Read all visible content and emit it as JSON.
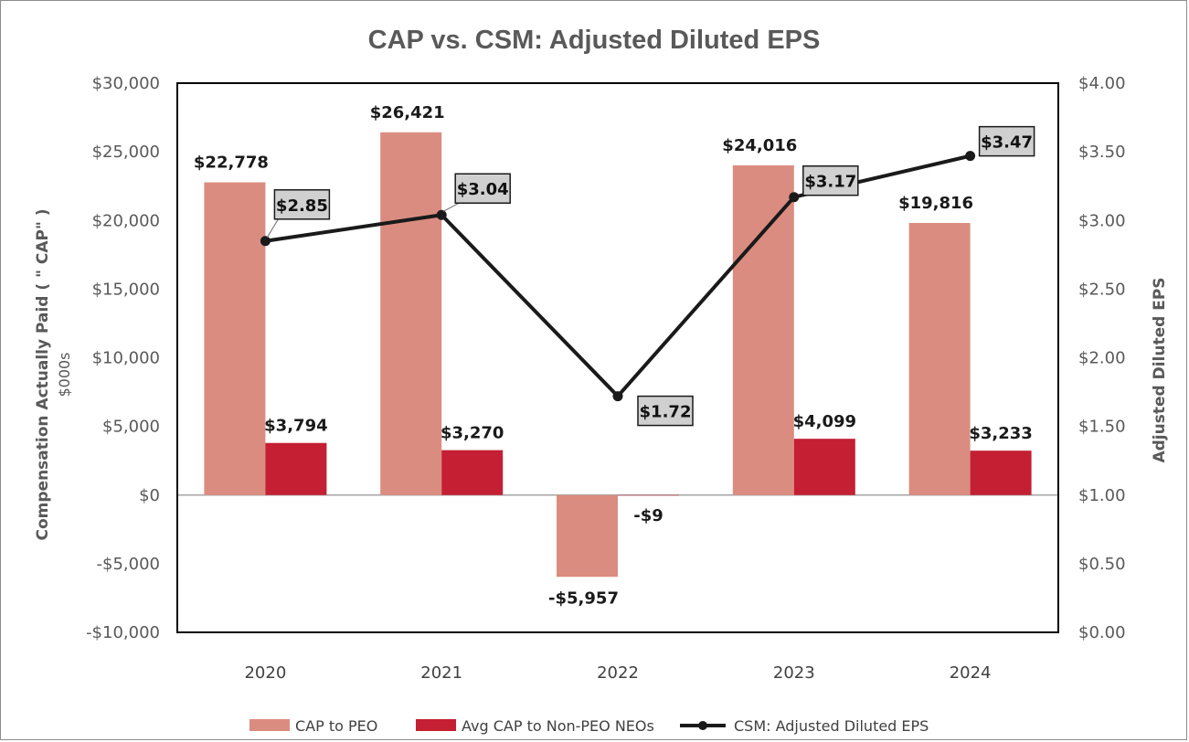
{
  "chart_data": {
    "type": "bar",
    "title": "CAP vs. CSM: Adjusted Diluted EPS",
    "categories": [
      "2020",
      "2021",
      "2022",
      "2023",
      "2024"
    ],
    "ylabel": "Compensation Actually Paid ( \" CAP\" )",
    "ylabel_sub": "$000s",
    "y2label": "Adjusted Diluted EPS",
    "ylim": [
      -10000,
      30000
    ],
    "y2lim": [
      0,
      4
    ],
    "yticks": [
      {
        "value": 30000,
        "label": "$30,000"
      },
      {
        "value": 25000,
        "label": "$25,000"
      },
      {
        "value": 20000,
        "label": "$20,000"
      },
      {
        "value": 15000,
        "label": "$15,000"
      },
      {
        "value": 10000,
        "label": "$10,000"
      },
      {
        "value": 5000,
        "label": "$5,000"
      },
      {
        "value": 0,
        "label": "$0"
      },
      {
        "value": -5000,
        "label": "-$5,000"
      },
      {
        "value": -10000,
        "label": "-$10,000"
      }
    ],
    "y2ticks": [
      {
        "value": 4.0,
        "label": "$4.00"
      },
      {
        "value": 3.5,
        "label": "$3.50"
      },
      {
        "value": 3.0,
        "label": "$3.00"
      },
      {
        "value": 2.5,
        "label": "$2.50"
      },
      {
        "value": 2.0,
        "label": "$2.00"
      },
      {
        "value": 1.5,
        "label": "$1.50"
      },
      {
        "value": 1.0,
        "label": "$1.00"
      },
      {
        "value": 0.5,
        "label": "$0.50"
      },
      {
        "value": 0.0,
        "label": "$0.00"
      }
    ],
    "series": [
      {
        "name": "CAP to PEO",
        "type": "bar",
        "color": "#db8c80",
        "values": [
          22778,
          26421,
          -5957,
          24016,
          19816
        ],
        "labels": [
          "$22,778",
          "$26,421",
          "-$5,957",
          "$24,016",
          "$19,816"
        ]
      },
      {
        "name": "Avg CAP to Non-PEO NEOs",
        "type": "bar",
        "color": "#c41f33",
        "values": [
          3794,
          3270,
          -9,
          4099,
          3233
        ],
        "labels": [
          "$3,794",
          "$3,270",
          "-$9",
          "$4,099",
          "$3,233"
        ]
      },
      {
        "name": "CSM: Adjusted Diluted EPS",
        "type": "line",
        "axis": "right",
        "color": "#1a1a1a",
        "values": [
          2.85,
          3.04,
          1.72,
          3.17,
          3.47
        ],
        "labels": [
          "$2.85",
          "$3.04",
          "$1.72",
          "$3.17",
          "$3.47"
        ]
      }
    ],
    "legend_position": "bottom"
  },
  "colors": {
    "label_box_fill": "#d0d0d0",
    "axis_text": "#595959",
    "zero_line": "#a6a6a6"
  }
}
